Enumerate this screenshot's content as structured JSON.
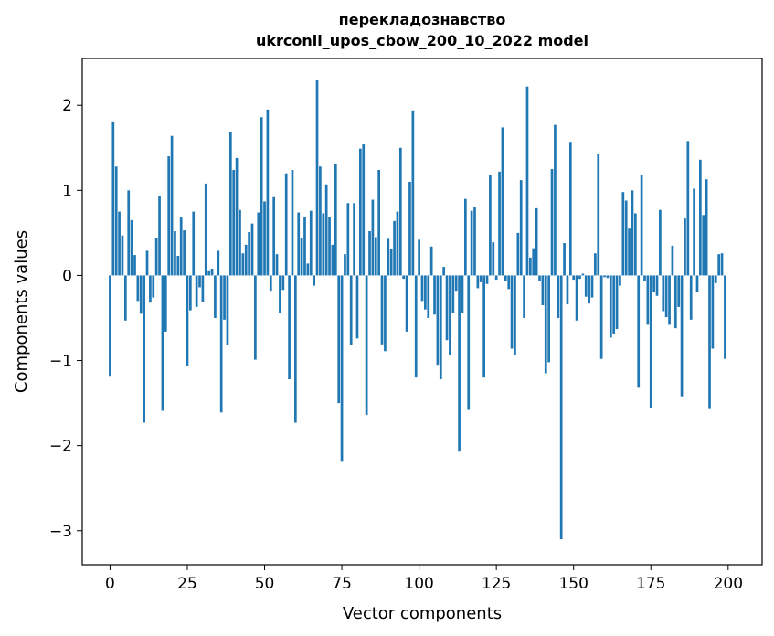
{
  "title_line1": "перекладознавство",
  "title_line2": "ukrconll_upos_cbow_200_10_2022 model",
  "chart_data": {
    "type": "bar",
    "xlabel": "Vector components",
    "ylabel": "Components values",
    "xlim": [
      -9,
      211
    ],
    "ylim": [
      -3.4,
      2.55
    ],
    "xticks": [
      0,
      25,
      50,
      75,
      100,
      125,
      150,
      175,
      200
    ],
    "yticks": [
      -3,
      -2,
      -1,
      0,
      1,
      2
    ],
    "color": "#1f77b4",
    "x": [
      0,
      1,
      2,
      3,
      4,
      5,
      6,
      7,
      8,
      9,
      10,
      11,
      12,
      13,
      14,
      15,
      16,
      17,
      18,
      19,
      20,
      21,
      22,
      23,
      24,
      25,
      26,
      27,
      28,
      29,
      30,
      31,
      32,
      33,
      34,
      35,
      36,
      37,
      38,
      39,
      40,
      41,
      42,
      43,
      44,
      45,
      46,
      47,
      48,
      49,
      50,
      51,
      52,
      53,
      54,
      55,
      56,
      57,
      58,
      59,
      60,
      61,
      62,
      63,
      64,
      65,
      66,
      67,
      68,
      69,
      70,
      71,
      72,
      73,
      74,
      75,
      76,
      77,
      78,
      79,
      80,
      81,
      82,
      83,
      84,
      85,
      86,
      87,
      88,
      89,
      90,
      91,
      92,
      93,
      94,
      95,
      96,
      97,
      98,
      99,
      100,
      101,
      102,
      103,
      104,
      105,
      106,
      107,
      108,
      109,
      110,
      111,
      112,
      113,
      114,
      115,
      116,
      117,
      118,
      119,
      120,
      121,
      122,
      123,
      124,
      125,
      126,
      127,
      128,
      129,
      130,
      131,
      132,
      133,
      134,
      135,
      136,
      137,
      138,
      139,
      140,
      141,
      142,
      143,
      144,
      145,
      146,
      147,
      148,
      149,
      150,
      151,
      152,
      153,
      154,
      155,
      156,
      157,
      158,
      159,
      160,
      161,
      162,
      163,
      164,
      165,
      166,
      167,
      168,
      169,
      170,
      171,
      172,
      173,
      174,
      175,
      176,
      177,
      178,
      179,
      180,
      181,
      182,
      183,
      184,
      185,
      186,
      187,
      188,
      189,
      190,
      191,
      192,
      193,
      194,
      195,
      196,
      197,
      198,
      199
    ],
    "values": [
      -1.19,
      1.81,
      1.28,
      0.75,
      0.47,
      -0.53,
      1.0,
      0.65,
      0.24,
      -0.3,
      -0.45,
      -1.73,
      0.29,
      -0.32,
      -0.26,
      0.44,
      0.93,
      -1.59,
      -0.66,
      1.4,
      1.64,
      0.52,
      0.23,
      0.68,
      0.53,
      -1.06,
      -0.41,
      0.75,
      -0.37,
      -0.14,
      -0.31,
      1.08,
      0.05,
      0.08,
      -0.5,
      0.29,
      -1.61,
      -0.52,
      -0.82,
      1.68,
      1.24,
      1.38,
      0.77,
      0.26,
      0.36,
      0.51,
      0.61,
      -0.99,
      0.74,
      1.86,
      0.87,
      1.95,
      -0.18,
      0.92,
      0.25,
      -0.44,
      -0.17,
      1.2,
      -1.22,
      1.24,
      -1.73,
      0.74,
      0.44,
      0.69,
      0.14,
      0.76,
      -0.12,
      2.3,
      1.28,
      0.73,
      1.07,
      0.69,
      0.36,
      1.31,
      -1.5,
      -2.19,
      0.25,
      0.85,
      -0.82,
      0.85,
      -0.74,
      1.49,
      1.54,
      -1.64,
      0.52,
      0.89,
      0.45,
      1.24,
      -0.81,
      -0.89,
      0.43,
      0.31,
      0.64,
      0.75,
      1.5,
      -0.04,
      -0.66,
      1.1,
      1.94,
      -1.2,
      0.42,
      -0.3,
      -0.4,
      -0.5,
      0.34,
      -0.46,
      -1.05,
      -1.22,
      0.1,
      -0.76,
      -0.94,
      -0.44,
      -0.18,
      -2.07,
      -0.44,
      0.9,
      -1.58,
      0.76,
      0.8,
      -0.15,
      -0.08,
      -1.2,
      -0.1,
      1.18,
      0.39,
      -0.05,
      1.22,
      1.74,
      -0.06,
      -0.16,
      -0.86,
      -0.94,
      0.5,
      1.12,
      -0.5,
      2.22,
      0.21,
      0.32,
      0.79,
      -0.06,
      -0.35,
      -1.15,
      -1.02,
      1.25,
      1.77,
      -0.5,
      -3.1,
      0.38,
      -0.34,
      1.57,
      -0.05,
      -0.53,
      -0.04,
      0.02,
      -0.25,
      -0.33,
      -0.26,
      0.26,
      1.43,
      -0.98,
      -0.02,
      -0.03,
      -0.73,
      -0.69,
      -0.63,
      -0.12,
      0.98,
      0.88,
      0.55,
      1.0,
      0.73,
      -1.32,
      1.18,
      -0.07,
      -0.58,
      -1.56,
      -0.2,
      -0.24,
      0.77,
      -0.42,
      -0.49,
      -0.58,
      0.35,
      -0.62,
      -0.37,
      -1.42,
      0.67,
      1.58,
      -0.52,
      1.02,
      -0.2,
      1.36,
      0.71,
      1.13,
      -1.57,
      -0.86,
      -0.09,
      0.25,
      0.26,
      -0.98
    ]
  }
}
